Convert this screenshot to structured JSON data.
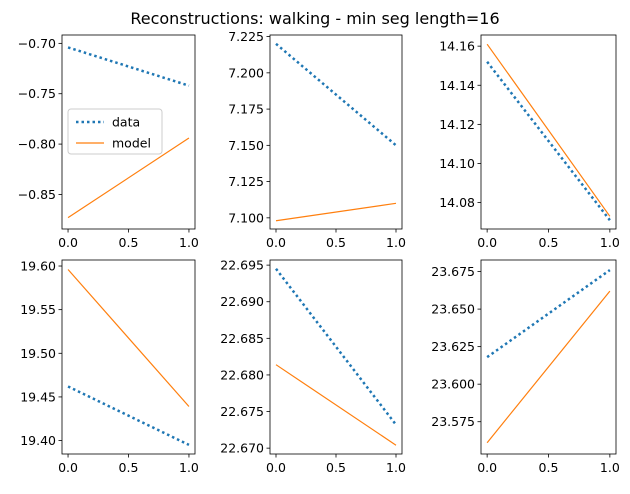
{
  "figure": {
    "title": "Reconstructions: walking - min seg length=16"
  },
  "colors": {
    "data": "#1f77b4",
    "model": "#ff7f0e"
  },
  "chart_data": [
    {
      "type": "line",
      "x": [
        0,
        1
      ],
      "xlim": [
        -0.05,
        1.05
      ],
      "ylim": [
        -0.8843,
        -0.6917
      ],
      "yticks": [
        -0.7,
        -0.75,
        -0.8,
        -0.85
      ],
      "ytick_labels": [
        "−0.70",
        "−0.75",
        "−0.80",
        "−0.85"
      ],
      "xticks": [
        0,
        0.5,
        1
      ],
      "xtick_labels": [
        "0.0",
        "0.5",
        "1.0"
      ],
      "series": [
        {
          "name": "data",
          "values": [
            -0.704,
            -0.742
          ]
        },
        {
          "name": "model",
          "values": [
            -0.873,
            -0.794
          ]
        }
      ],
      "legend": {
        "position": "center-left"
      }
    },
    {
      "type": "line",
      "x": [
        0,
        1
      ],
      "xlim": [
        -0.05,
        1.05
      ],
      "ylim": [
        7.0923,
        7.2261
      ],
      "yticks": [
        7.1,
        7.125,
        7.15,
        7.175,
        7.2,
        7.225
      ],
      "ytick_labels": [
        "7.100",
        "7.125",
        "7.150",
        "7.175",
        "7.200",
        "7.225"
      ],
      "xticks": [
        0,
        0.5,
        1
      ],
      "xtick_labels": [
        "0.0",
        "0.5",
        "1.0"
      ],
      "series": [
        {
          "name": "data",
          "values": [
            7.22,
            7.15
          ]
        },
        {
          "name": "model",
          "values": [
            7.098,
            7.11
          ]
        }
      ]
    },
    {
      "type": "line",
      "x": [
        0,
        1
      ],
      "xlim": [
        -0.05,
        1.05
      ],
      "ylim": [
        14.0665,
        14.1657
      ],
      "yticks": [
        14.08,
        14.1,
        14.12,
        14.14,
        14.16
      ],
      "ytick_labels": [
        "14.08",
        "14.10",
        "14.12",
        "14.14",
        "14.16"
      ],
      "xticks": [
        0,
        0.5,
        1
      ],
      "xtick_labels": [
        "0.0",
        "0.5",
        "1.0"
      ],
      "series": [
        {
          "name": "data",
          "values": [
            14.152,
            14.071
          ]
        },
        {
          "name": "model",
          "values": [
            14.161,
            14.073
          ]
        }
      ]
    },
    {
      "type": "line",
      "x": [
        0,
        1
      ],
      "xlim": [
        -0.05,
        1.05
      ],
      "ylim": [
        19.3846,
        19.6069
      ],
      "yticks": [
        19.4,
        19.45,
        19.5,
        19.55,
        19.6
      ],
      "ytick_labels": [
        "19.40",
        "19.45",
        "19.50",
        "19.55",
        "19.60"
      ],
      "xticks": [
        0,
        0.5,
        1
      ],
      "xtick_labels": [
        "0.0",
        "0.5",
        "1.0"
      ],
      "series": [
        {
          "name": "data",
          "values": [
            19.462,
            19.395
          ]
        },
        {
          "name": "model",
          "values": [
            19.596,
            19.439
          ]
        }
      ]
    },
    {
      "type": "line",
      "x": [
        0,
        1
      ],
      "xlim": [
        -0.05,
        1.05
      ],
      "ylim": [
        22.6692,
        22.6957
      ],
      "yticks": [
        22.67,
        22.675,
        22.68,
        22.685,
        22.69,
        22.695
      ],
      "ytick_labels": [
        "22.670",
        "22.675",
        "22.680",
        "22.685",
        "22.690",
        "22.695"
      ],
      "xticks": [
        0,
        0.5,
        1
      ],
      "xtick_labels": [
        "0.0",
        "0.5",
        "1.0"
      ],
      "series": [
        {
          "name": "data",
          "values": [
            22.6945,
            22.6732
          ]
        },
        {
          "name": "model",
          "values": [
            22.6814,
            22.6704
          ]
        }
      ]
    },
    {
      "type": "line",
      "x": [
        0,
        1
      ],
      "xlim": [
        -0.05,
        1.05
      ],
      "ylim": [
        23.5535,
        23.6827
      ],
      "yticks": [
        23.575,
        23.6,
        23.625,
        23.65,
        23.675
      ],
      "ytick_labels": [
        "23.575",
        "23.600",
        "23.625",
        "23.650",
        "23.675"
      ],
      "xticks": [
        0,
        0.5,
        1
      ],
      "xtick_labels": [
        "0.0",
        "0.5",
        "1.0"
      ],
      "series": [
        {
          "name": "data",
          "values": [
            23.618,
            23.676
          ]
        },
        {
          "name": "model",
          "values": [
            23.561,
            23.662
          ]
        }
      ]
    }
  ]
}
